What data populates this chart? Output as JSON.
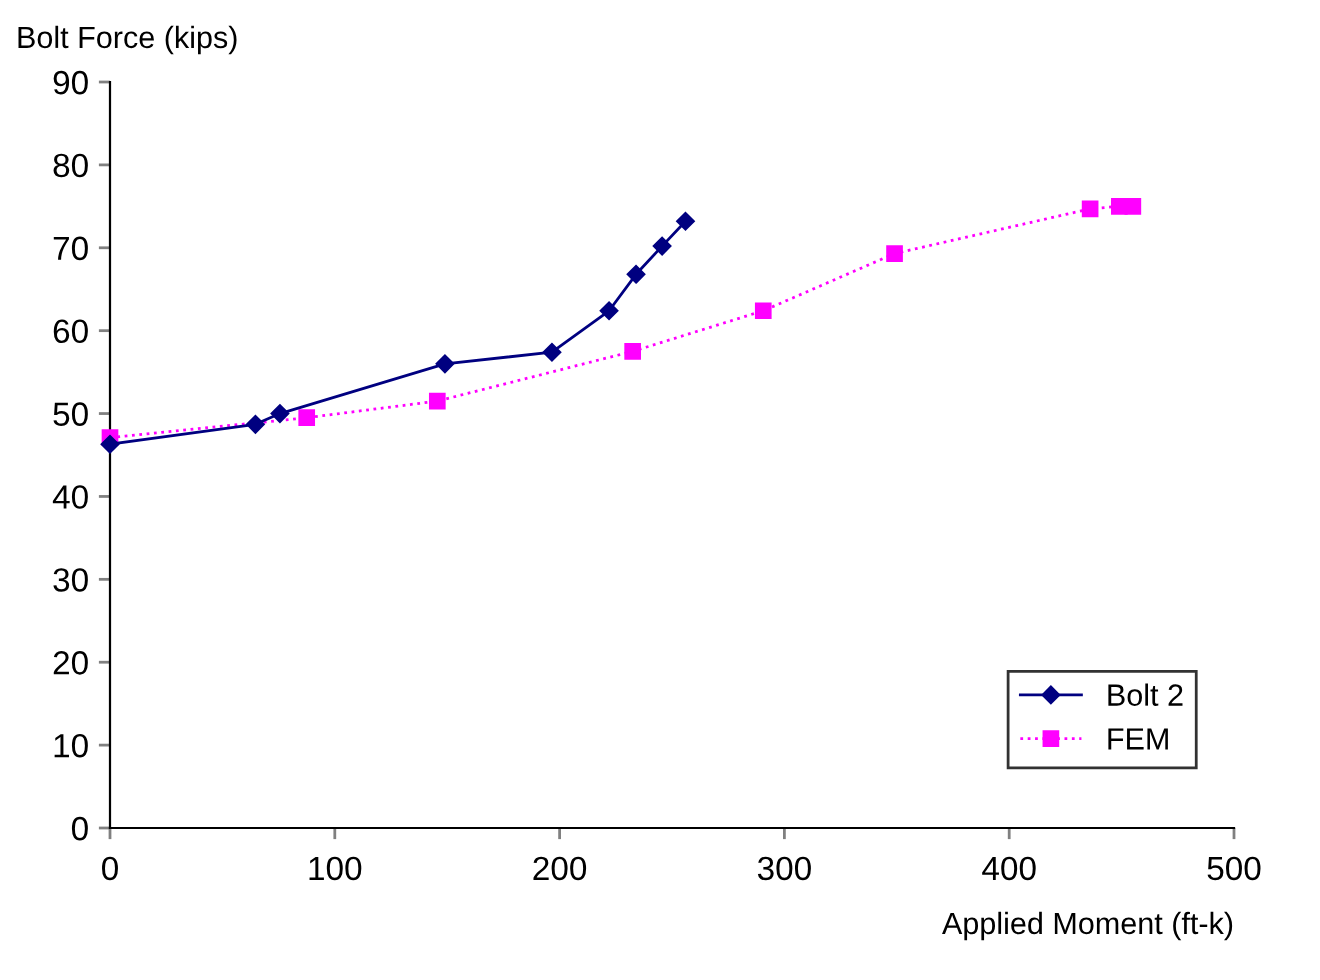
{
  "chart_data": {
    "type": "line",
    "xlabel": "Applied Moment (ft-k)",
    "ylabel": "Bolt Force (kips)",
    "xlim": [
      0,
      500
    ],
    "xticks": [
      0,
      100,
      200,
      300,
      400,
      500
    ],
    "ylim": [
      0,
      90
    ],
    "yticks": [
      0,
      10,
      20,
      30,
      40,
      50,
      60,
      70,
      80,
      90
    ],
    "grid": false,
    "legend": "bottom right",
    "series": [
      {
        "name": "Bolt 2",
        "color": "#000080",
        "marker": "diamond",
        "line_style": "solid",
        "x": [
          0,
          64.7,
          75.6,
          149,
          196.6,
          222,
          234,
          245.6,
          256
        ],
        "values": [
          46.3,
          48.7,
          50,
          56,
          57.4,
          62.4,
          66.8,
          70.2,
          73.2
        ]
      },
      {
        "name": "FEM",
        "color": "#ff00ff",
        "marker": "square",
        "line_style": "dotted",
        "x": [
          0,
          87.5,
          145.6,
          232.5,
          290.6,
          349,
          436,
          449,
          455
        ],
        "values": [
          47.1,
          49.5,
          51.5,
          57.5,
          62.4,
          69.3,
          74.7,
          75,
          75
        ]
      }
    ]
  }
}
